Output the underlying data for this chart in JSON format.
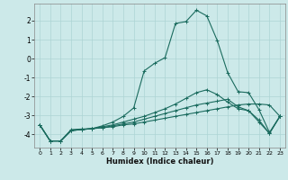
{
  "title": "",
  "xlabel": "Humidex (Indice chaleur)",
  "xlim": [
    -0.5,
    23.5
  ],
  "ylim": [
    -4.7,
    2.9
  ],
  "yticks": [
    -4,
    -3,
    -2,
    -1,
    0,
    1,
    2
  ],
  "xticks": [
    0,
    1,
    2,
    3,
    4,
    5,
    6,
    7,
    8,
    9,
    10,
    11,
    12,
    13,
    14,
    15,
    16,
    17,
    18,
    19,
    20,
    21,
    22,
    23
  ],
  "bg_color": "#cce9e9",
  "line_color": "#1a6b5e",
  "grid_color": "#add4d4",
  "lines": [
    {
      "x": [
        0,
        1,
        2,
        3,
        4,
        5,
        6,
        7,
        8,
        9,
        10,
        11,
        12,
        13,
        14,
        15,
        16,
        17,
        18,
        19,
        20,
        21,
        22,
        23
      ],
      "y": [
        -3.5,
        -4.35,
        -4.35,
        -3.75,
        -3.72,
        -3.7,
        -3.65,
        -3.6,
        -3.5,
        -3.45,
        -3.35,
        -3.25,
        -3.15,
        -3.05,
        -2.95,
        -2.85,
        -2.75,
        -2.65,
        -2.55,
        -2.45,
        -2.4,
        -2.4,
        -2.45,
        -3.05
      ]
    },
    {
      "x": [
        0,
        1,
        2,
        3,
        4,
        5,
        6,
        7,
        8,
        9,
        10,
        11,
        12,
        13,
        14,
        15,
        16,
        17,
        18,
        19,
        20,
        21,
        22,
        23
      ],
      "y": [
        -3.5,
        -4.35,
        -4.35,
        -3.8,
        -3.75,
        -3.7,
        -3.65,
        -3.55,
        -3.45,
        -3.35,
        -3.2,
        -3.05,
        -2.9,
        -2.75,
        -2.6,
        -2.45,
        -2.35,
        -2.25,
        -2.15,
        -2.55,
        -2.75,
        -3.25,
        -3.95,
        -3.05
      ]
    },
    {
      "x": [
        0,
        1,
        2,
        3,
        4,
        5,
        6,
        7,
        8,
        9,
        10,
        11,
        12,
        13,
        14,
        15,
        16,
        17,
        18,
        19,
        20,
        21,
        22,
        23
      ],
      "y": [
        -3.5,
        -4.35,
        -4.35,
        -3.8,
        -3.75,
        -3.7,
        -3.6,
        -3.5,
        -3.35,
        -3.2,
        -3.05,
        -2.85,
        -2.65,
        -2.4,
        -2.1,
        -1.8,
        -1.65,
        -1.9,
        -2.3,
        -2.65,
        -2.75,
        -3.35,
        -3.95,
        -3.05
      ]
    },
    {
      "x": [
        0,
        1,
        2,
        3,
        4,
        5,
        6,
        7,
        8,
        9,
        10,
        11,
        12,
        13,
        14,
        15,
        16,
        17,
        18,
        19,
        20,
        21,
        22,
        23
      ],
      "y": [
        -3.5,
        -4.35,
        -4.35,
        -3.8,
        -3.75,
        -3.7,
        -3.55,
        -3.35,
        -3.05,
        -2.6,
        -0.65,
        -0.25,
        0.05,
        1.85,
        1.95,
        2.55,
        2.25,
        0.95,
        -0.75,
        -1.75,
        -1.8,
        -2.7,
        -3.9,
        -3.05
      ]
    }
  ]
}
